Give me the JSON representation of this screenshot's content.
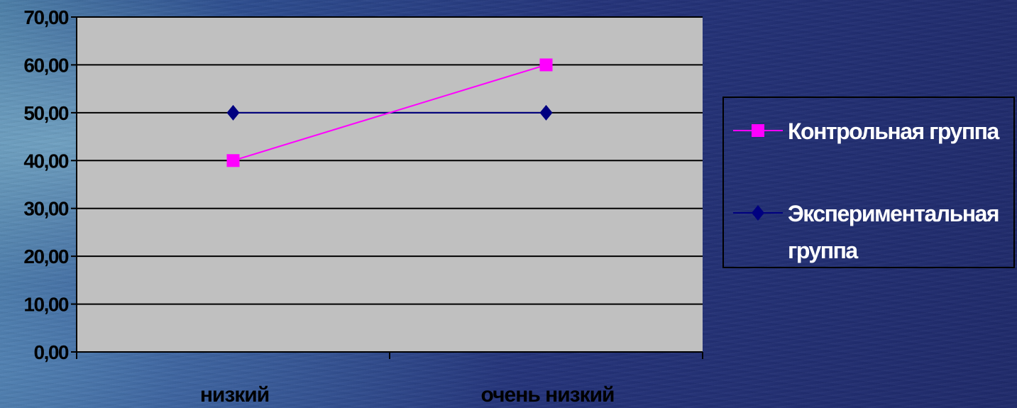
{
  "chart_data": {
    "type": "line",
    "categories": [
      "низкий",
      "очень низкий"
    ],
    "series": [
      {
        "name": "Контрольная группа",
        "values": [
          40,
          60
        ],
        "color": "#ff00ff",
        "marker": "square"
      },
      {
        "name": "Экспериментальная группа",
        "values": [
          50,
          50
        ],
        "color": "#000080",
        "marker": "diamond"
      }
    ],
    "yticks": [
      "0,00",
      "10,00",
      "20,00",
      "30,00",
      "40,00",
      "50,00",
      "60,00",
      "70,00"
    ],
    "ylim": [
      0,
      70
    ],
    "grid": true,
    "plot_background": "#c0c0c0",
    "legend_position": "right"
  }
}
